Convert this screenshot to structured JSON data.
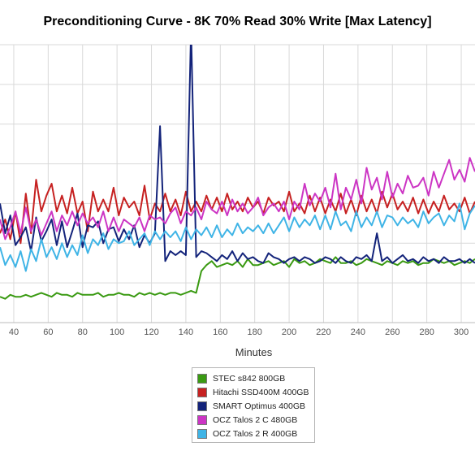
{
  "title": "Preconditioning Curve - 8K 70% Read 30% Write [Max Latency]",
  "chart_data": {
    "type": "line",
    "title": "Preconditioning Curve - 8K 70% Read 30% Write [Max Latency]",
    "xlabel": "Minutes",
    "ylabel": "",
    "xlim": [
      32,
      308
    ],
    "ylim": [
      0,
      14
    ],
    "x_ticks": [
      40,
      60,
      80,
      100,
      120,
      140,
      160,
      180,
      200,
      220,
      240,
      260,
      280,
      300
    ],
    "grid": true,
    "legend_position": "bottom-center",
    "x": [
      32,
      35,
      38,
      41,
      44,
      47,
      50,
      53,
      56,
      59,
      62,
      65,
      68,
      71,
      74,
      77,
      80,
      83,
      86,
      89,
      92,
      95,
      98,
      101,
      104,
      107,
      110,
      113,
      116,
      119,
      122,
      125,
      128,
      131,
      134,
      137,
      140,
      143,
      146,
      149,
      152,
      155,
      158,
      161,
      164,
      167,
      170,
      173,
      176,
      179,
      182,
      185,
      188,
      191,
      194,
      197,
      200,
      203,
      206,
      209,
      212,
      215,
      218,
      221,
      224,
      227,
      230,
      233,
      236,
      239,
      242,
      245,
      248,
      251,
      254,
      257,
      260,
      263,
      266,
      269,
      272,
      275,
      278,
      281,
      284,
      287,
      290,
      293,
      296,
      299,
      302,
      305,
      308
    ],
    "series": [
      {
        "name": "STEC s842 800GB",
        "color": "#3a9a12",
        "values": [
          1.3,
          1.2,
          1.4,
          1.3,
          1.3,
          1.4,
          1.3,
          1.4,
          1.5,
          1.4,
          1.3,
          1.5,
          1.4,
          1.4,
          1.3,
          1.5,
          1.4,
          1.4,
          1.4,
          1.5,
          1.3,
          1.4,
          1.4,
          1.5,
          1.4,
          1.4,
          1.3,
          1.5,
          1.4,
          1.5,
          1.4,
          1.5,
          1.4,
          1.5,
          1.5,
          1.4,
          1.5,
          1.6,
          1.5,
          2.6,
          2.9,
          3.1,
          2.8,
          2.9,
          3.0,
          2.9,
          3.1,
          2.8,
          3.2,
          2.9,
          2.9,
          3.0,
          3.1,
          2.9,
          3.0,
          3.1,
          2.8,
          3.2,
          3.0,
          3.1,
          2.9,
          3.0,
          3.2,
          3.1,
          3.0,
          3.3,
          3.0,
          3.0,
          3.1,
          2.9,
          3.0,
          3.2,
          3.1,
          3.0,
          2.9,
          3.1,
          3.0,
          2.9,
          3.1,
          3.0,
          3.1,
          2.9,
          3.0,
          3.0,
          3.2,
          3.1,
          3.0,
          3.1,
          2.9,
          3.0,
          3.1,
          3.0,
          3.2
        ]
      },
      {
        "name": "Hitachi SSD400M 400GB",
        "color": "#c62121",
        "values": [
          4.5,
          5.2,
          4.2,
          5.6,
          4.0,
          6.5,
          4.5,
          7.2,
          5.6,
          6.4,
          7.0,
          5.6,
          6.4,
          5.5,
          6.8,
          5.5,
          6.1,
          4.6,
          6.6,
          5.6,
          6.2,
          5.6,
          6.8,
          5.4,
          6.3,
          5.8,
          6.1,
          5.4,
          6.9,
          5.2,
          6.0,
          5.6,
          6.5,
          5.6,
          6.2,
          5.4,
          6.6,
          5.6,
          6.1,
          5.6,
          6.4,
          5.7,
          6.3,
          5.6,
          6.5,
          5.7,
          6.1,
          5.6,
          6.3,
          5.8,
          6.1,
          5.5,
          6.3,
          5.9,
          6.1,
          5.6,
          6.6,
          5.6,
          6.0,
          5.5,
          6.4,
          5.6,
          6.3,
          5.5,
          6.2,
          5.6,
          6.5,
          5.5,
          6.2,
          5.4,
          6.4,
          5.6,
          6.2,
          5.5,
          6.6,
          5.8,
          6.5,
          5.7,
          6.1,
          5.6,
          6.3,
          5.5,
          6.2,
          5.5,
          6.1,
          5.6,
          6.4,
          5.7,
          6.0,
          5.6,
          6.3,
          5.5,
          6.1
        ]
      },
      {
        "name": "SMART Optimus 400GB",
        "color": "#13237a",
        "values": [
          6.0,
          4.5,
          5.4,
          3.9,
          4.3,
          4.8,
          3.6,
          5.3,
          4.1,
          4.6,
          5.2,
          3.9,
          5.1,
          3.8,
          4.6,
          5.5,
          3.8,
          4.9,
          4.8,
          5.1,
          4.0,
          4.7,
          4.8,
          4.1,
          4.7,
          4.2,
          4.9,
          3.8,
          4.4,
          4.0,
          4.5,
          9.9,
          3.1,
          3.6,
          3.4,
          3.6,
          3.4,
          14.8,
          3.3,
          3.6,
          3.5,
          3.3,
          3.1,
          3.4,
          3.2,
          3.6,
          3.1,
          3.5,
          3.2,
          3.3,
          3.1,
          3.0,
          3.5,
          3.3,
          3.2,
          3.0,
          3.2,
          3.3,
          3.1,
          3.3,
          3.2,
          3.0,
          3.1,
          3.3,
          3.2,
          3.0,
          3.3,
          3.1,
          3.0,
          3.3,
          3.2,
          3.4,
          3.1,
          4.5,
          3.1,
          3.3,
          3.0,
          3.2,
          3.4,
          3.1,
          3.2,
          3.0,
          3.3,
          3.1,
          3.2,
          3.0,
          3.3,
          3.1,
          3.1,
          3.2,
          3.0,
          3.2,
          3.0
        ]
      },
      {
        "name": "OCZ Talos 2 C 480GB",
        "color": "#cc35c4",
        "values": [
          5.2,
          4.2,
          4.8,
          5.6,
          4.5,
          5.8,
          4.6,
          5.2,
          4.4,
          5.0,
          5.6,
          4.6,
          5.4,
          4.9,
          5.6,
          4.9,
          5.5,
          5.0,
          5.3,
          4.8,
          5.6,
          4.6,
          5.3,
          4.6,
          5.2,
          5.0,
          4.8,
          5.3,
          4.6,
          5.4,
          5.2,
          5.3,
          5.0,
          5.5,
          5.8,
          5.0,
          5.6,
          5.4,
          5.8,
          5.2,
          6.1,
          5.7,
          5.5,
          6.1,
          5.4,
          6.2,
          5.6,
          6.0,
          5.5,
          5.8,
          6.3,
          5.4,
          5.8,
          6.0,
          5.6,
          6.1,
          5.2,
          6.1,
          5.7,
          7.0,
          5.9,
          6.5,
          6.1,
          6.8,
          5.8,
          7.5,
          5.7,
          6.8,
          6.2,
          7.2,
          6.0,
          7.8,
          6.7,
          7.3,
          6.2,
          7.6,
          6.3,
          7.0,
          6.5,
          7.4,
          6.8,
          6.9,
          7.3,
          6.4,
          7.6,
          6.8,
          7.5,
          8.2,
          7.2,
          7.7,
          7.1,
          8.3,
          7.6
        ]
      },
      {
        "name": "OCZ Talos 2 R 400GB",
        "color": "#3fb4e6",
        "values": [
          3.8,
          2.9,
          3.4,
          2.8,
          3.6,
          2.6,
          3.7,
          3.1,
          4.2,
          3.3,
          3.8,
          3.2,
          4.0,
          3.3,
          3.9,
          3.4,
          4.4,
          3.5,
          4.2,
          3.9,
          4.5,
          3.7,
          4.2,
          4.0,
          4.1,
          4.6,
          3.9,
          4.2,
          4.5,
          3.9,
          4.6,
          4.2,
          4.6,
          4.3,
          4.6,
          4.1,
          4.8,
          4.2,
          4.7,
          4.4,
          4.8,
          4.3,
          4.9,
          4.3,
          4.7,
          4.4,
          5.0,
          4.5,
          4.8,
          4.6,
          4.9,
          4.5,
          5.0,
          4.5,
          4.9,
          5.3,
          4.6,
          5.3,
          4.8,
          5.2,
          4.9,
          5.4,
          4.7,
          5.4,
          4.7,
          5.6,
          4.9,
          5.1,
          4.6,
          5.6,
          4.8,
          5.3,
          4.9,
          5.6,
          4.8,
          5.4,
          5.3,
          4.9,
          5.3,
          5.0,
          5.2,
          4.8,
          5.6,
          5.0,
          5.3,
          5.5,
          4.9,
          5.4,
          5.1,
          6.0,
          4.7,
          5.5,
          5.9
        ]
      }
    ]
  }
}
